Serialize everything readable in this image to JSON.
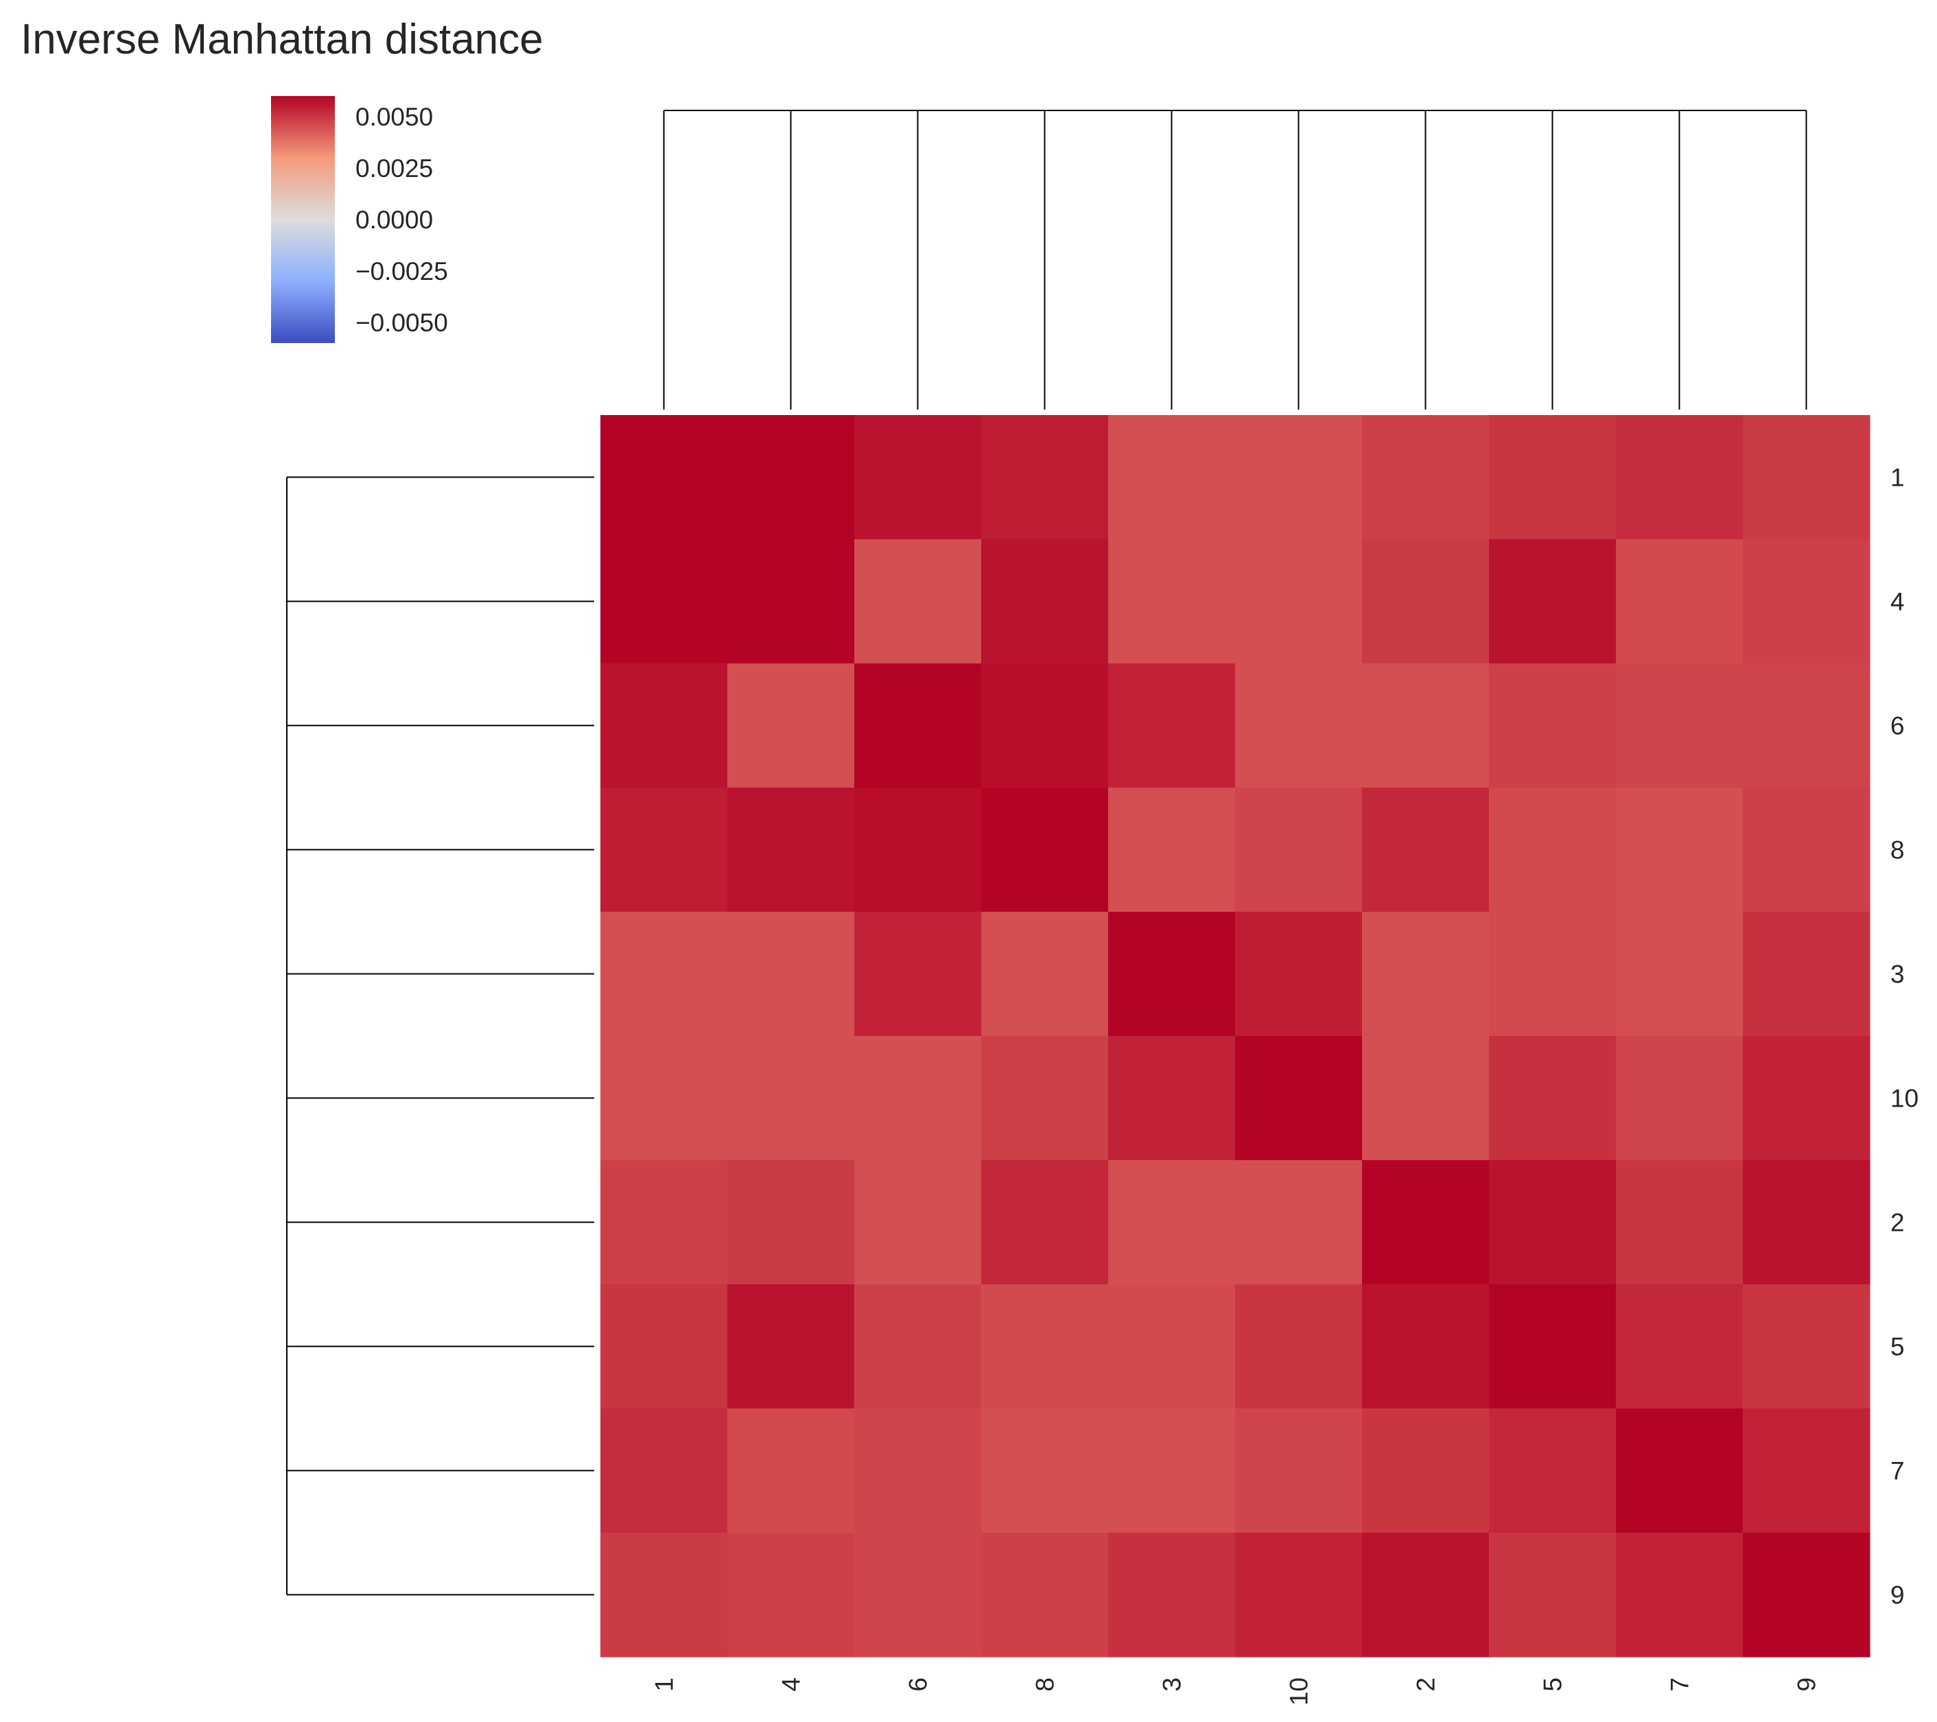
{
  "chart_data": {
    "type": "heatmap",
    "title": "Inverse Manhattan distance",
    "row_labels": [
      "1",
      "4",
      "6",
      "8",
      "3",
      "10",
      "2",
      "5",
      "7",
      "9"
    ],
    "col_labels": [
      "1",
      "4",
      "6",
      "8",
      "3",
      "10",
      "2",
      "5",
      "7",
      "9"
    ],
    "values": [
      [
        0.006,
        0.006,
        0.0057,
        0.0055,
        0.0045,
        0.0045,
        0.0048,
        0.005,
        0.0052,
        0.0049
      ],
      [
        0.006,
        0.006,
        0.0045,
        0.0057,
        0.0045,
        0.0045,
        0.0049,
        0.0057,
        0.0046,
        0.0048
      ],
      [
        0.0057,
        0.0045,
        0.006,
        0.0058,
        0.0054,
        0.0045,
        0.0045,
        0.0048,
        0.0047,
        0.0047
      ],
      [
        0.0055,
        0.0057,
        0.0058,
        0.006,
        0.0045,
        0.0047,
        0.0053,
        0.0046,
        0.0045,
        0.0048
      ],
      [
        0.0045,
        0.0045,
        0.0054,
        0.0045,
        0.006,
        0.0055,
        0.0045,
        0.0046,
        0.0045,
        0.0051
      ],
      [
        0.0045,
        0.0045,
        0.0045,
        0.0048,
        0.0054,
        0.006,
        0.0045,
        0.0051,
        0.0047,
        0.0054
      ],
      [
        0.0048,
        0.0049,
        0.0045,
        0.0053,
        0.0045,
        0.0045,
        0.006,
        0.0057,
        0.005,
        0.0057
      ],
      [
        0.005,
        0.0057,
        0.0048,
        0.0046,
        0.0046,
        0.005,
        0.0057,
        0.006,
        0.0053,
        0.005
      ],
      [
        0.0052,
        0.0046,
        0.0047,
        0.0045,
        0.0045,
        0.0047,
        0.005,
        0.0053,
        0.006,
        0.0054
      ],
      [
        0.0049,
        0.0048,
        0.0047,
        0.0048,
        0.0051,
        0.0054,
        0.0057,
        0.005,
        0.0054,
        0.006
      ]
    ],
    "colorbar": {
      "colormap": "coolwarm",
      "vmin": -0.006,
      "vmax": 0.006,
      "ticks": [
        0.005,
        0.0025,
        0.0,
        -0.0025,
        -0.005
      ],
      "tick_labels": [
        "0.0050",
        "0.0025",
        "0.0000",
        "−0.0025",
        "−0.0050"
      ],
      "colors": [
        "#3b4cc0",
        "#8db0fe",
        "#dddddd",
        "#f49a7b",
        "#b40426"
      ]
    },
    "row_dendrogram": true,
    "col_dendrogram": true,
    "grid": false
  }
}
